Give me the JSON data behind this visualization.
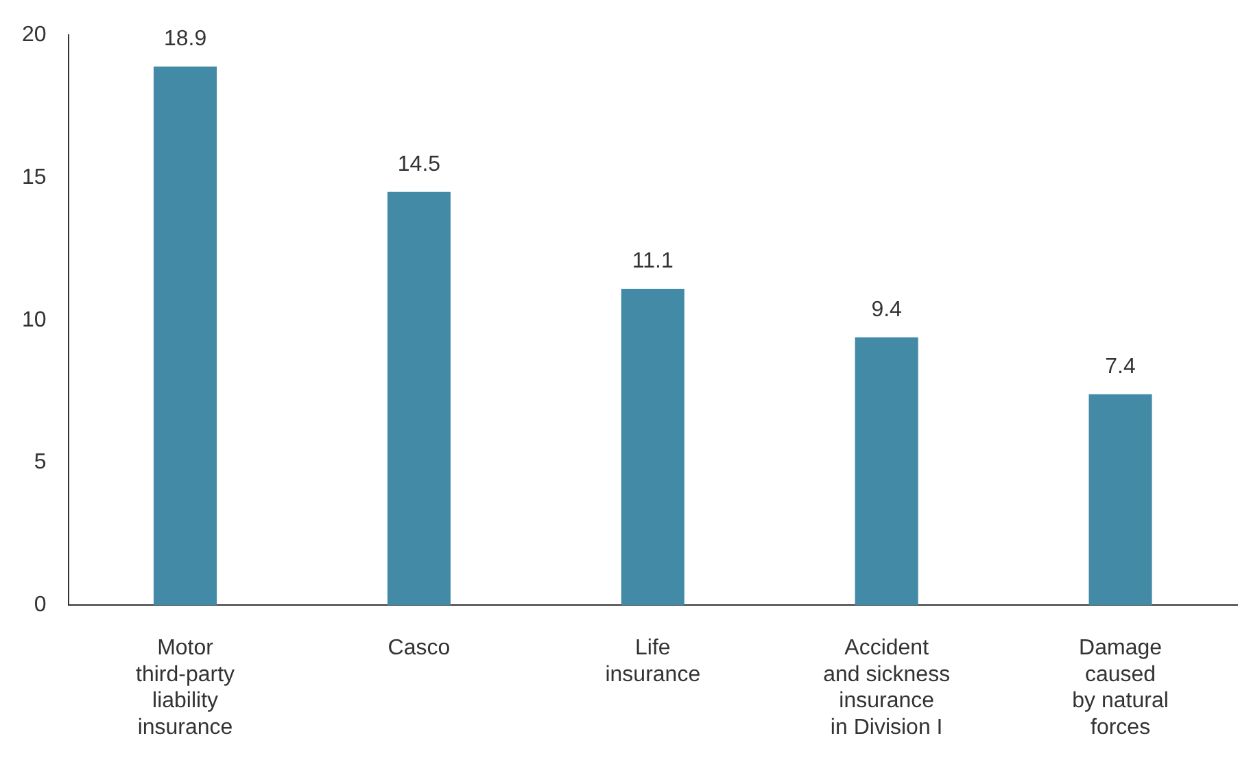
{
  "chart_data": {
    "type": "bar",
    "categories": [
      "Motor\nthird-party\nliability\ninsurance",
      "Casco",
      "Life\ninsurance",
      "Accident\nand sickness\ninsurance\nin Division I",
      "Damage\ncaused\nby natural\nforces"
    ],
    "values": [
      18.9,
      14.5,
      11.1,
      9.4,
      7.4
    ],
    "color": "#428aa6",
    "ylim": [
      0,
      20
    ],
    "yticks": [
      0,
      5,
      10,
      15,
      20
    ],
    "grid": false,
    "data_labels": true
  }
}
